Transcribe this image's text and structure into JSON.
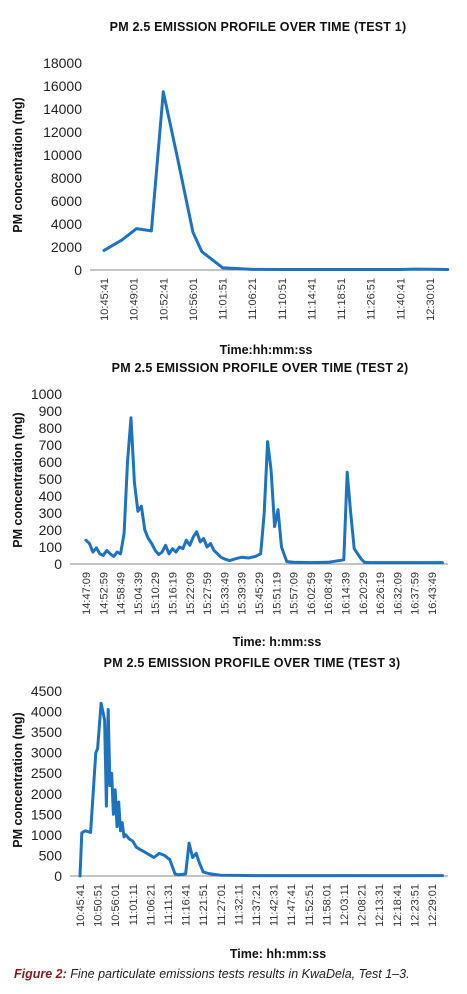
{
  "caption": {
    "label": "Figure 2:",
    "text": "Fine particulate emissions tests results in KwaDela, Test 1–3."
  },
  "colors": {
    "series": "#1e73be",
    "axis": "#888888"
  },
  "chart_data": [
    {
      "type": "line",
      "title": "PM 2.5 EMISSION  PROFILE OVER TIME  (TEST 1)",
      "xlabel": "Time:hh:mm:ss",
      "ylabel": "PM concentration (mg)",
      "ylim": [
        0,
        18000
      ],
      "yticks": [
        "0",
        "2000",
        "4000",
        "6000",
        "8000",
        "10000",
        "12000",
        "14000",
        "16000",
        "18000"
      ],
      "categories": [
        "10:45:41",
        "10:49:01",
        "10:52:41",
        "10:56:01",
        "11:01:51",
        "11:06:21",
        "11:10:51",
        "11:14:41",
        "11:18:51",
        "11:26:51",
        "11:40:41",
        "12:30:01"
      ],
      "x": [
        0,
        0.6,
        1.1,
        1.6,
        2.0,
        2.5,
        3.0,
        3.3,
        4.0,
        5,
        6,
        7,
        8,
        9,
        10,
        10.5,
        11.0,
        11.6
      ],
      "values": [
        1700,
        2600,
        3600,
        3400,
        15500,
        9500,
        3300,
        1600,
        200,
        50,
        40,
        40,
        40,
        40,
        40,
        80,
        60,
        40
      ],
      "grid": false
    },
    {
      "type": "line",
      "title": "PM 2.5 EMISSION  PROFILE OVER TIME  (TEST 2)",
      "xlabel": "Time:  h:mm:ss",
      "ylabel": "PM concentration (mg)",
      "ylim": [
        0,
        1000
      ],
      "yticks": [
        "0",
        "100",
        "200",
        "300",
        "400",
        "500",
        "600",
        "700",
        "800",
        "900",
        "1000"
      ],
      "categories": [
        "14:47:09",
        "14:52:59",
        "14:58:49",
        "15:04:39",
        "15:10:29",
        "15:16:19",
        "15:22:09",
        "15:27:59",
        "15:33:49",
        "15:39:39",
        "15:45:29",
        "15:51:19",
        "15:57:09",
        "16:02:59",
        "16:08:49",
        "16:14:39",
        "16:20:29",
        "16:26:19",
        "16:32:09",
        "16:37:59",
        "16:43:49"
      ],
      "x": [
        0,
        0.2,
        0.4,
        0.6,
        0.8,
        1.0,
        1.2,
        1.4,
        1.6,
        1.8,
        2.0,
        2.2,
        2.4,
        2.6,
        2.8,
        3.0,
        3.2,
        3.4,
        3.6,
        3.8,
        4.0,
        4.2,
        4.4,
        4.6,
        4.8,
        5.0,
        5.2,
        5.4,
        5.6,
        5.8,
        6.0,
        6.2,
        6.4,
        6.6,
        6.8,
        7.0,
        7.2,
        7.4,
        7.6,
        7.8,
        8.0,
        8.3,
        8.6,
        9.0,
        9.4,
        9.8,
        10.1,
        10.3,
        10.5,
        10.7,
        10.9,
        11.1,
        11.3,
        11.6,
        12.0,
        13.0,
        14.0,
        14.9,
        15.1,
        15.3,
        15.5,
        15.7,
        15.9,
        16.1,
        16.4,
        17.0,
        18.0,
        19.0,
        20.0,
        20.6
      ],
      "values": [
        140,
        120,
        70,
        95,
        60,
        50,
        80,
        60,
        45,
        70,
        60,
        180,
        600,
        860,
        480,
        310,
        340,
        200,
        150,
        120,
        80,
        55,
        70,
        110,
        60,
        90,
        70,
        100,
        90,
        140,
        110,
        160,
        190,
        130,
        150,
        100,
        120,
        80,
        60,
        40,
        30,
        20,
        30,
        40,
        35,
        45,
        60,
        300,
        720,
        550,
        220,
        320,
        100,
        15,
        10,
        8,
        10,
        25,
        540,
        300,
        90,
        60,
        30,
        10,
        8,
        8,
        8,
        8,
        8,
        8
      ],
      "grid": false
    },
    {
      "type": "line",
      "title": "PM 2.5 EMISSION  PROFILE OVER TIME  (TEST 3)",
      "xlabel": "Time:  hh:mm:ss",
      "ylabel": "PM concentration (mg)",
      "ylim": [
        0,
        4500
      ],
      "yticks": [
        "0",
        "500",
        "1000",
        "1500",
        "2000",
        "2500",
        "3000",
        "3500",
        "4000",
        "4500"
      ],
      "categories": [
        "10:45:41",
        "10:50:51",
        "10:56:01",
        "11:01:11",
        "11:06:21",
        "11:11:31",
        "11:16:41",
        "11:21:51",
        "11:27:01",
        "11:32:11",
        "11:37:21",
        "11:42:31",
        "11:47:41",
        "11:52:51",
        "11:58:01",
        "12:03:11",
        "12:08:21",
        "12:13:31",
        "12:18:41",
        "12:23:51",
        "12:29:01"
      ],
      "x": [
        0,
        0.1,
        0.3,
        0.6,
        0.9,
        1.0,
        1.2,
        1.4,
        1.5,
        1.6,
        1.7,
        1.8,
        1.9,
        2.0,
        2.1,
        2.2,
        2.3,
        2.4,
        2.5,
        2.6,
        2.8,
        3.0,
        3.2,
        3.4,
        3.6,
        3.8,
        4.0,
        4.2,
        4.5,
        4.8,
        5.1,
        5.4,
        5.6,
        5.8,
        6.0,
        6.2,
        6.4,
        6.6,
        6.8,
        7.0,
        7.3,
        7.6,
        8.0,
        9.0,
        10.0,
        11.0,
        12.0,
        13.0,
        14.0,
        15.0,
        16.0,
        17.0,
        18.0,
        19.0,
        20.0,
        20.6
      ],
      "values": [
        0,
        1050,
        1100,
        1060,
        3000,
        3100,
        4200,
        3800,
        1700,
        4050,
        2200,
        2500,
        1500,
        2100,
        1200,
        1800,
        1100,
        1300,
        950,
        1000,
        900,
        850,
        700,
        650,
        600,
        550,
        500,
        450,
        550,
        500,
        400,
        50,
        30,
        40,
        50,
        800,
        450,
        550,
        300,
        100,
        60,
        40,
        20,
        15,
        10,
        10,
        10,
        10,
        10,
        10,
        10,
        10,
        10,
        10,
        10,
        10
      ],
      "grid": false
    }
  ]
}
